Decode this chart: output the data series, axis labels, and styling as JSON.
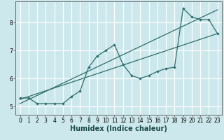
{
  "xlabel": "Humidex (Indice chaleur)",
  "bg_color": "#cde8ec",
  "line_color": "#2e6e6a",
  "grid_color": "#ffffff",
  "xlim": [
    -0.5,
    23.5
  ],
  "ylim": [
    4.7,
    8.75
  ],
  "xticks": [
    0,
    1,
    2,
    3,
    4,
    5,
    6,
    7,
    8,
    9,
    10,
    11,
    12,
    13,
    14,
    15,
    16,
    17,
    18,
    19,
    20,
    21,
    22,
    23
  ],
  "yticks": [
    5,
    6,
    7,
    8
  ],
  "line1_x": [
    0,
    1,
    2,
    3,
    4,
    5,
    6,
    7,
    8,
    9,
    10,
    11,
    12,
    13,
    14,
    15,
    16,
    17,
    18,
    19,
    20,
    21,
    22,
    23
  ],
  "line1_y": [
    5.3,
    5.3,
    5.1,
    5.1,
    5.1,
    5.1,
    5.35,
    5.55,
    6.4,
    6.8,
    7.0,
    7.2,
    6.5,
    6.1,
    6.0,
    6.1,
    6.25,
    6.35,
    6.4,
    8.5,
    8.2,
    8.1,
    8.1,
    7.6
  ],
  "line2_x": [
    0,
    23
  ],
  "line2_y": [
    5.25,
    7.6
  ],
  "line3_x": [
    0,
    23
  ],
  "line3_y": [
    5.1,
    8.45
  ],
  "xlabel_fontsize": 7,
  "tick_fontsize": 5.5
}
